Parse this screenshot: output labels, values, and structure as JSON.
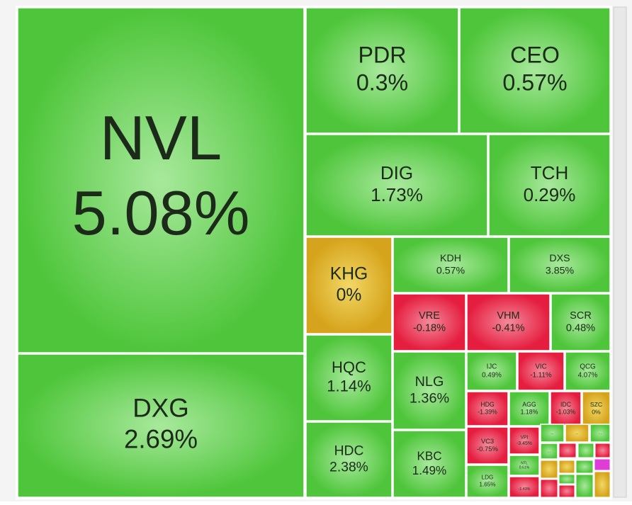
{
  "chart_data": {
    "type": "treemap",
    "categories": [
      "NVL",
      "DXG",
      "PDR",
      "CEO",
      "DIG",
      "TCH",
      "KHG",
      "KDH",
      "DXS",
      "VRE",
      "VHM",
      "SCR",
      "HQC",
      "NLG",
      "IJC",
      "VIC",
      "QCG",
      "HDC",
      "KBC",
      "HDG",
      "AGG",
      "IDC",
      "SZC",
      "VC3",
      "VPI",
      "NTL",
      "LDG",
      null,
      "...",
      "...",
      "...",
      "..."
    ],
    "values": [
      5.08,
      2.69,
      0.3,
      0.57,
      1.73,
      0.29,
      0,
      0.57,
      3.85,
      -0.18,
      -0.41,
      0.48,
      1.14,
      1.36,
      0.49,
      -1.11,
      4.07,
      2.38,
      1.49,
      -1.39,
      1.18,
      -1.03,
      0,
      -0.75,
      -3.45,
      0.61,
      1.65,
      -1.43,
      null,
      null,
      null,
      null
    ],
    "value_labels": [
      "5.08%",
      "2.69%",
      "0.3%",
      "0.57%",
      "1.73%",
      "0.29%",
      "0%",
      "0.57%",
      "3.85%",
      "-0.18%",
      "-0.41%",
      "0.48%",
      "1.14%",
      "1.36%",
      "0.49%",
      "-1.11%",
      "4.07%",
      "2.38%",
      "1.49%",
      "-1.39%",
      "1.18%",
      "-1.03%",
      "0%",
      "-0.75%",
      "-3.45%",
      "0.61%",
      "1.65%",
      "-1.43%",
      null,
      null,
      null,
      null
    ],
    "colors": [
      "green",
      "green",
      "green",
      "green",
      "green",
      "green",
      "yellow",
      "green",
      "green",
      "red",
      "red",
      "green",
      "green",
      "green",
      "green",
      "red",
      "green",
      "green",
      "green",
      "red",
      "green",
      "red",
      "yellow",
      "red",
      "red",
      "green",
      "green",
      "red",
      "green",
      "yellow",
      "green",
      "green"
    ]
  }
}
